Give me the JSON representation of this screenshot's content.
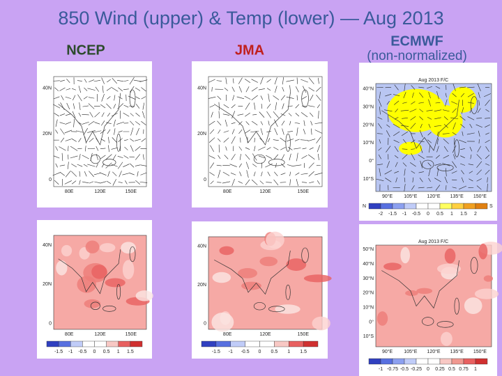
{
  "title": "850 Wind (upper) & Temp (lower) — Aug 2013",
  "columns": [
    {
      "label": "NCEP"
    },
    {
      "label": "JMA"
    },
    {
      "label": "ECMWF",
      "sublabel": "(non-normalized)"
    }
  ],
  "panels": [
    {
      "lat": [
        "40N",
        "20N",
        "0"
      ],
      "lon": [
        "80E",
        "120E",
        "150E"
      ]
    },
    {
      "lat": [
        "40N",
        "20N",
        "0"
      ],
      "lon": [
        "80E",
        "120E",
        "150E"
      ]
    },
    {
      "tag": "Aug 2013 F/C",
      "lat": [
        "40°N",
        "30°N",
        "20°N",
        "10°N",
        "0°",
        "10°S"
      ],
      "lon": [
        "90°E",
        "105°E",
        "120°E",
        "135°E",
        "150°E"
      ],
      "cbar": [
        "-2",
        "-1.5",
        "-1",
        "-0.5",
        "0",
        "0.5",
        "1",
        "1.5",
        "2"
      ],
      "cbar_ends": [
        "N",
        "S"
      ]
    },
    {
      "lat": [
        "40N",
        "20N",
        "0"
      ],
      "lon": [
        "80E",
        "120E",
        "150E"
      ],
      "cbar": [
        "-1.5",
        "-1",
        "-0.5",
        "0",
        "0.5",
        "1",
        "1.5"
      ]
    },
    {
      "lat": [
        "40N",
        "20N",
        "0"
      ],
      "lon": [
        "80E",
        "120E",
        "150E"
      ],
      "cbar": [
        "-1.5",
        "-1",
        "-0.5",
        "0",
        "0.5",
        "1",
        "1.5"
      ]
    },
    {
      "tag": "Aug 2013 F/C",
      "lat": [
        "50°N",
        "40°N",
        "30°N",
        "20°N",
        "10°N",
        "0°",
        "10°S"
      ],
      "lon": [
        "90°E",
        "105°E",
        "120°E",
        "135°E",
        "150°E"
      ],
      "cbar": [
        "-1",
        "-0.75",
        "-0.5",
        "-0.25",
        "0",
        "0.25",
        "0.5",
        "0.75",
        "1"
      ]
    }
  ]
}
